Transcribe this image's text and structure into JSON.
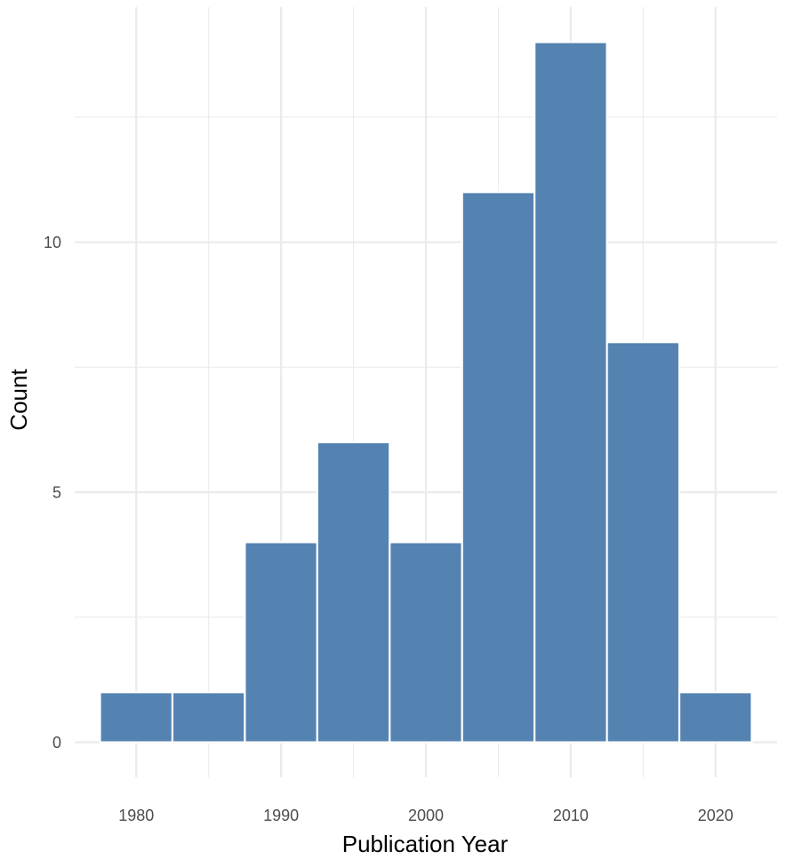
{
  "chart_data": {
    "type": "bar",
    "xlabel": "Publication Year",
    "ylabel": "Count",
    "bin_width": 5,
    "bins": [
      {
        "center": 1980,
        "count": 1
      },
      {
        "center": 1985,
        "count": 1
      },
      {
        "center": 1990,
        "count": 4
      },
      {
        "center": 1995,
        "count": 6
      },
      {
        "center": 2000,
        "count": 4
      },
      {
        "center": 2005,
        "count": 11
      },
      {
        "center": 2010,
        "count": 14
      },
      {
        "center": 2015,
        "count": 8
      },
      {
        "center": 2020,
        "count": 1
      }
    ],
    "xlim": [
      1975.75,
      2024.25
    ],
    "ylim": [
      -0.7,
      14.7
    ],
    "x_ticks": [
      "1980",
      "1990",
      "2000",
      "2010",
      "2020"
    ],
    "y_ticks": [
      "0",
      "5",
      "10"
    ],
    "grid": true,
    "bar_color": "#5482b1",
    "grid_color": "#ebebeb"
  }
}
